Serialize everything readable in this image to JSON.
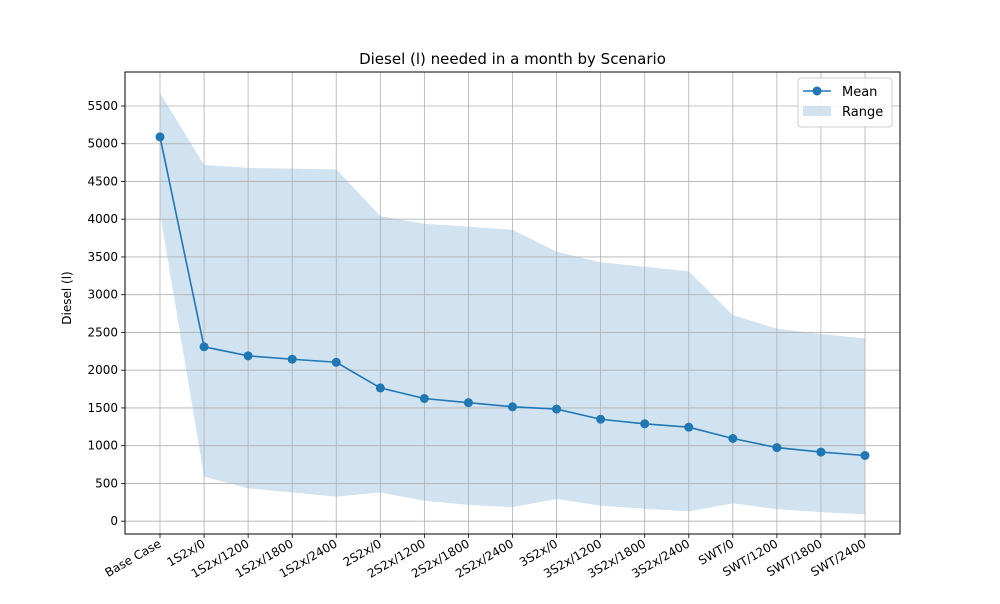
{
  "chart_data": {
    "type": "line",
    "title": "Diesel (l) needed in a month by Scenario",
    "xlabel": "",
    "ylabel": "Diesel (l)",
    "categories": [
      "Base Case",
      "1S2x/0",
      "1S2x/1200",
      "1S2x/1800",
      "1S2x/2400",
      "2S2x/0",
      "2S2x/1200",
      "2S2x/1800",
      "2S2x/2400",
      "3S2x/0",
      "3S2x/1200",
      "3S2x/1800",
      "3S2x/2400",
      "SWT/0",
      "SWT/1200",
      "SWT/1800",
      "SWT/2400"
    ],
    "series": [
      {
        "name": "Mean",
        "values": [
          5090,
          2310,
          2190,
          2145,
          2105,
          1765,
          1625,
          1570,
          1515,
          1485,
          1350,
          1290,
          1245,
          1095,
          975,
          915,
          870
        ],
        "color": "#1f77b4"
      }
    ],
    "range": {
      "name": "Range",
      "min": [
        4080,
        590,
        435,
        380,
        325,
        380,
        270,
        215,
        185,
        295,
        205,
        165,
        130,
        235,
        160,
        120,
        90
      ],
      "max": [
        5670,
        4720,
        4680,
        4670,
        4660,
        4040,
        3940,
        3900,
        3860,
        3570,
        3430,
        3370,
        3310,
        2730,
        2550,
        2480,
        2420
      ],
      "color": "#b3d1e7"
    },
    "yticks": [
      "0",
      "500",
      "1000",
      "1500",
      "2000",
      "2500",
      "3000",
      "3500",
      "4000",
      "4500",
      "5000",
      "5500"
    ],
    "ylim": [
      -170,
      5950
    ],
    "grid": true,
    "legend_position": "upper right"
  }
}
